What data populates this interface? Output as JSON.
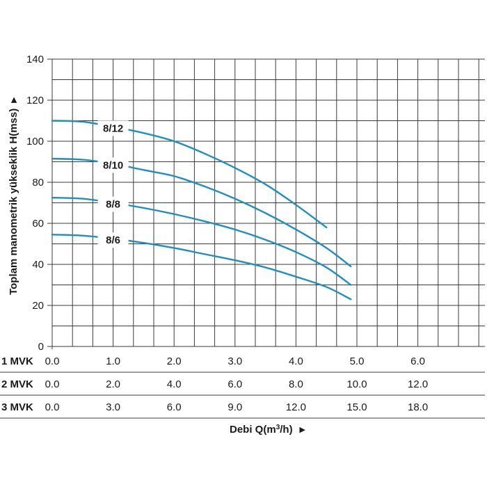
{
  "chart_data": {
    "type": "line",
    "ylabel": "Toplam manometrik yükseklik H(mss)",
    "xlabel_prefix": "Debi Q(m",
    "xlabel_sup": "3",
    "xlabel_suffix": "/h)",
    "ylim": [
      0,
      140
    ],
    "yticks": [
      "0",
      "20",
      "40",
      "60",
      "80",
      "100",
      "120",
      "140"
    ],
    "grid": true,
    "x_scales": [
      {
        "label": "1 MVK",
        "ticks": [
          "0.0",
          "1.0",
          "2.0",
          "3.0",
          "4.0",
          "5.0",
          "6.0"
        ]
      },
      {
        "label": "2 MVK",
        "ticks": [
          "0.0",
          "2.0",
          "4.0",
          "6.0",
          "8.0",
          "10.0",
          "12.0"
        ]
      },
      {
        "label": "3 MVK",
        "ticks": [
          "0.0",
          "3.0",
          "6.0",
          "9.0",
          "12.0",
          "15.0",
          "18.0"
        ]
      }
    ],
    "series": [
      {
        "name": "8/12",
        "x": [
          0,
          0.5,
          1.0,
          1.5,
          2.0,
          2.5,
          3.0,
          3.5,
          4.0,
          4.5
        ],
        "y": [
          110,
          109.5,
          107,
          104,
          100,
          94,
          87,
          79,
          69,
          58
        ]
      },
      {
        "name": "8/10",
        "x": [
          0,
          0.5,
          1.0,
          1.5,
          2.0,
          2.5,
          3.0,
          3.5,
          4.0,
          4.5,
          4.9
        ],
        "y": [
          91.5,
          91,
          89,
          86,
          83,
          78,
          72,
          65,
          57,
          48,
          39
        ]
      },
      {
        "name": "8/8",
        "x": [
          0,
          0.5,
          1.0,
          1.5,
          2.0,
          2.5,
          3.0,
          3.5,
          4.0,
          4.5,
          4.9
        ],
        "y": [
          72.5,
          72,
          70,
          67.5,
          64.5,
          61,
          57,
          52,
          46,
          38.5,
          30
        ]
      },
      {
        "name": "8/6",
        "x": [
          0,
          0.5,
          1.0,
          1.5,
          2.0,
          2.5,
          3.0,
          3.5,
          4.0,
          4.5,
          4.9
        ],
        "y": [
          54.5,
          54,
          52.5,
          50.5,
          48,
          45,
          42,
          38.5,
          34,
          29,
          23
        ]
      }
    ],
    "curve_color": "#1e8fc2",
    "grid_color": "#3a3a3a"
  }
}
